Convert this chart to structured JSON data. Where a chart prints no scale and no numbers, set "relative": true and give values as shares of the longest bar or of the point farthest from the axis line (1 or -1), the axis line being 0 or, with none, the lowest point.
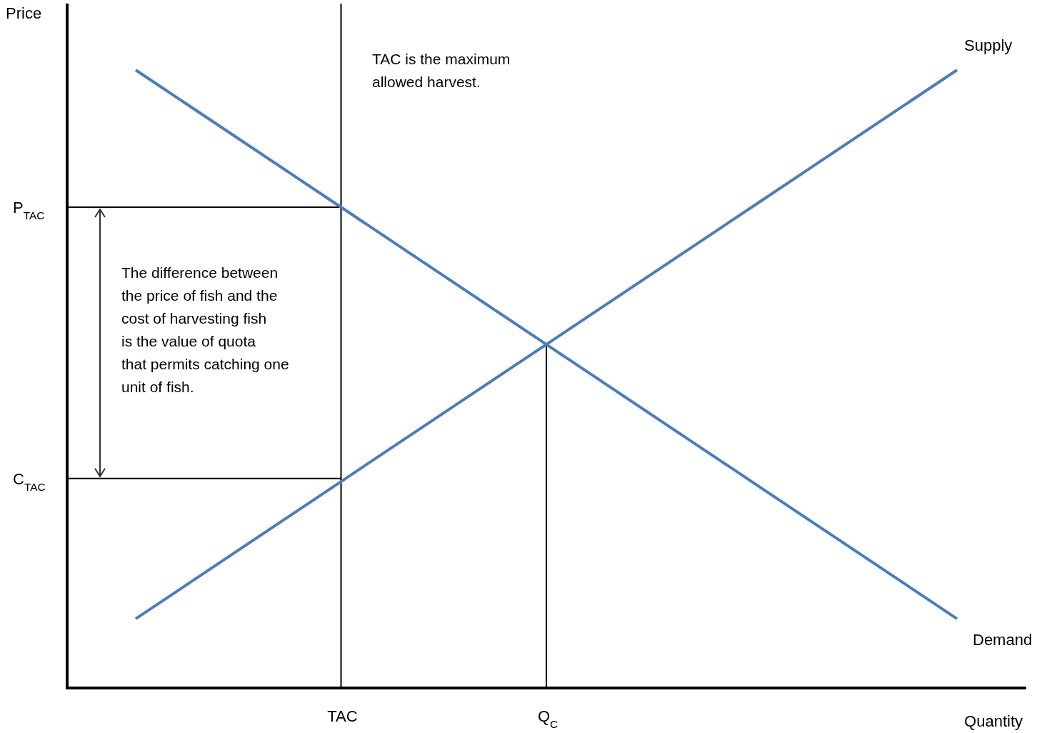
{
  "chart_data": {
    "type": "line",
    "relative": true,
    "xlabel": "Quantity",
    "ylabel": "Price",
    "categories": [
      null,
      "TAC",
      "Q$_{C}$",
      null,
      null
    ],
    "series": [
      {
        "name": "Supply",
        "color": "#4a7ebb",
        "values": [
          0.112,
          0.334,
          0.556,
          0.778,
          1
        ]
      },
      {
        "name": "Demand",
        "color": "#4a7ebb",
        "values": [
          1,
          0.778,
          0.556,
          0.334,
          0.112
        ]
      }
    ],
    "ref_lines": [
      {
        "axis": "x",
        "value": "TAC",
        "color": "#000000"
      },
      {
        "axis": "x",
        "value": "Q$_{C}$",
        "color": "#000000"
      },
      {
        "axis": "y",
        "value": 0.778,
        "label": "P$_{TAC}$",
        "color": "#000000"
      },
      {
        "axis": "y",
        "value": 0.339,
        "label": "C$_{TAC}$",
        "color": "#000000"
      }
    ],
    "annotations": [
      "TAC is the maximum allowed harvest.",
      "The difference between the price of fish and the cost of harvesting fish is the value of quota that permits catching one unit of fish."
    ],
    "line_style": "solid"
  }
}
